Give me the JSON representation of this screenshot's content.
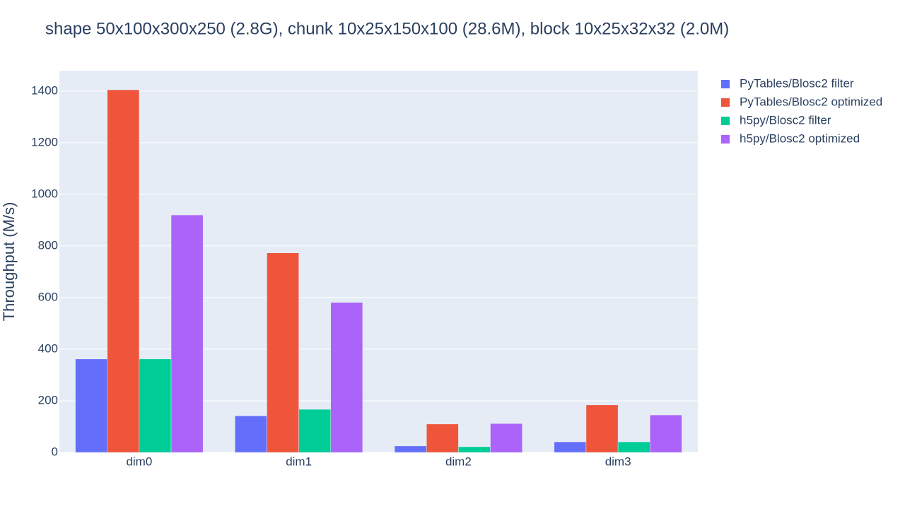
{
  "chart_data": {
    "type": "bar",
    "title": "shape 50x100x300x250 (2.8G), chunk 10x25x150x100 (28.6M), block 10x25x32x32 (2.0M)",
    "y_label": "Throughput (M/s)",
    "categories": [
      "dim0",
      "dim1",
      "dim2",
      "dim3"
    ],
    "series": [
      {
        "name": "PyTables/Blosc2 filter",
        "color": "#636efa",
        "values": [
          362,
          142,
          25,
          41
        ]
      },
      {
        "name": "PyTables/Blosc2 optimized",
        "color": "#ef553b",
        "values": [
          1405,
          773,
          110,
          184
        ]
      },
      {
        "name": "h5py/Blosc2 filter",
        "color": "#00cc96",
        "values": [
          362,
          167,
          22,
          41
        ]
      },
      {
        "name": "h5py/Blosc2 optimized",
        "color": "#ab63fa",
        "values": [
          920,
          581,
          112,
          145
        ]
      }
    ],
    "ylim": [
      0,
      1479
    ],
    "yticks": [
      0,
      200,
      400,
      600,
      800,
      1000,
      1200,
      1400
    ],
    "grid": true
  }
}
